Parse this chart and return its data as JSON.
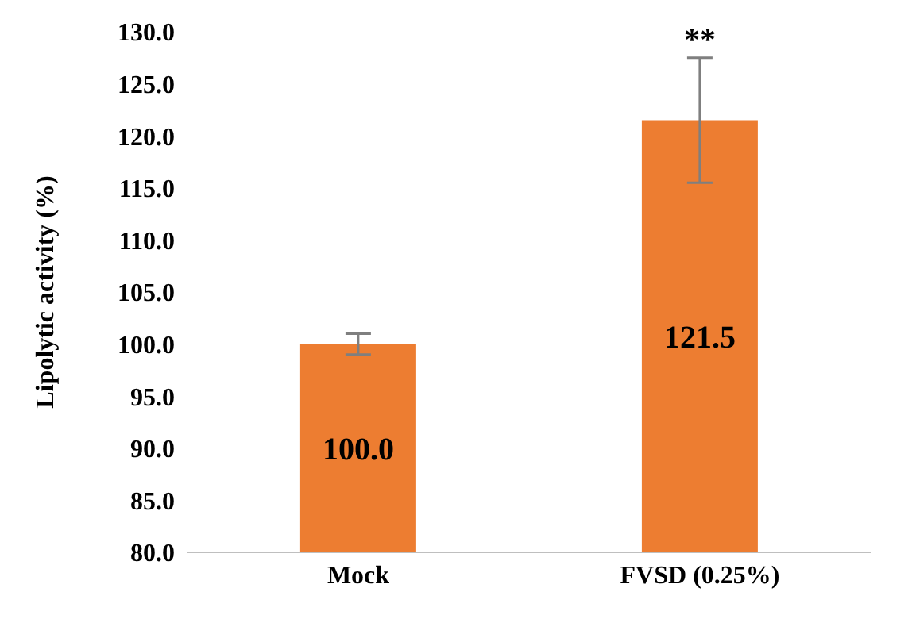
{
  "chart_data": {
    "type": "bar",
    "ylabel": "Lipolytic activity (%)",
    "categories": [
      "Mock",
      "FVSD (0.25%)"
    ],
    "values": [
      100.0,
      121.5
    ],
    "errors": [
      1.0,
      6.0
    ],
    "color": "#ed7d31",
    "value_labels": [
      "100.0",
      "121.5"
    ],
    "ylim": [
      80,
      130
    ],
    "yticks": [
      {
        "value": 80,
        "label": "80.0"
      },
      {
        "value": 85,
        "label": "85.0"
      },
      {
        "value": 90,
        "label": "90.0"
      },
      {
        "value": 95,
        "label": "95.0"
      },
      {
        "value": 100,
        "label": "100.0"
      },
      {
        "value": 105,
        "label": "105.0"
      },
      {
        "value": 110,
        "label": "110.0"
      },
      {
        "value": 115,
        "label": "115.0"
      },
      {
        "value": 120,
        "label": "120.0"
      },
      {
        "value": 125,
        "label": "125.0"
      },
      {
        "value": 130,
        "label": "130.0"
      }
    ],
    "grid": false,
    "annotations": [
      {
        "text": "**",
        "x": "FVSD (0.25%)",
        "y": 127.5
      }
    ]
  }
}
